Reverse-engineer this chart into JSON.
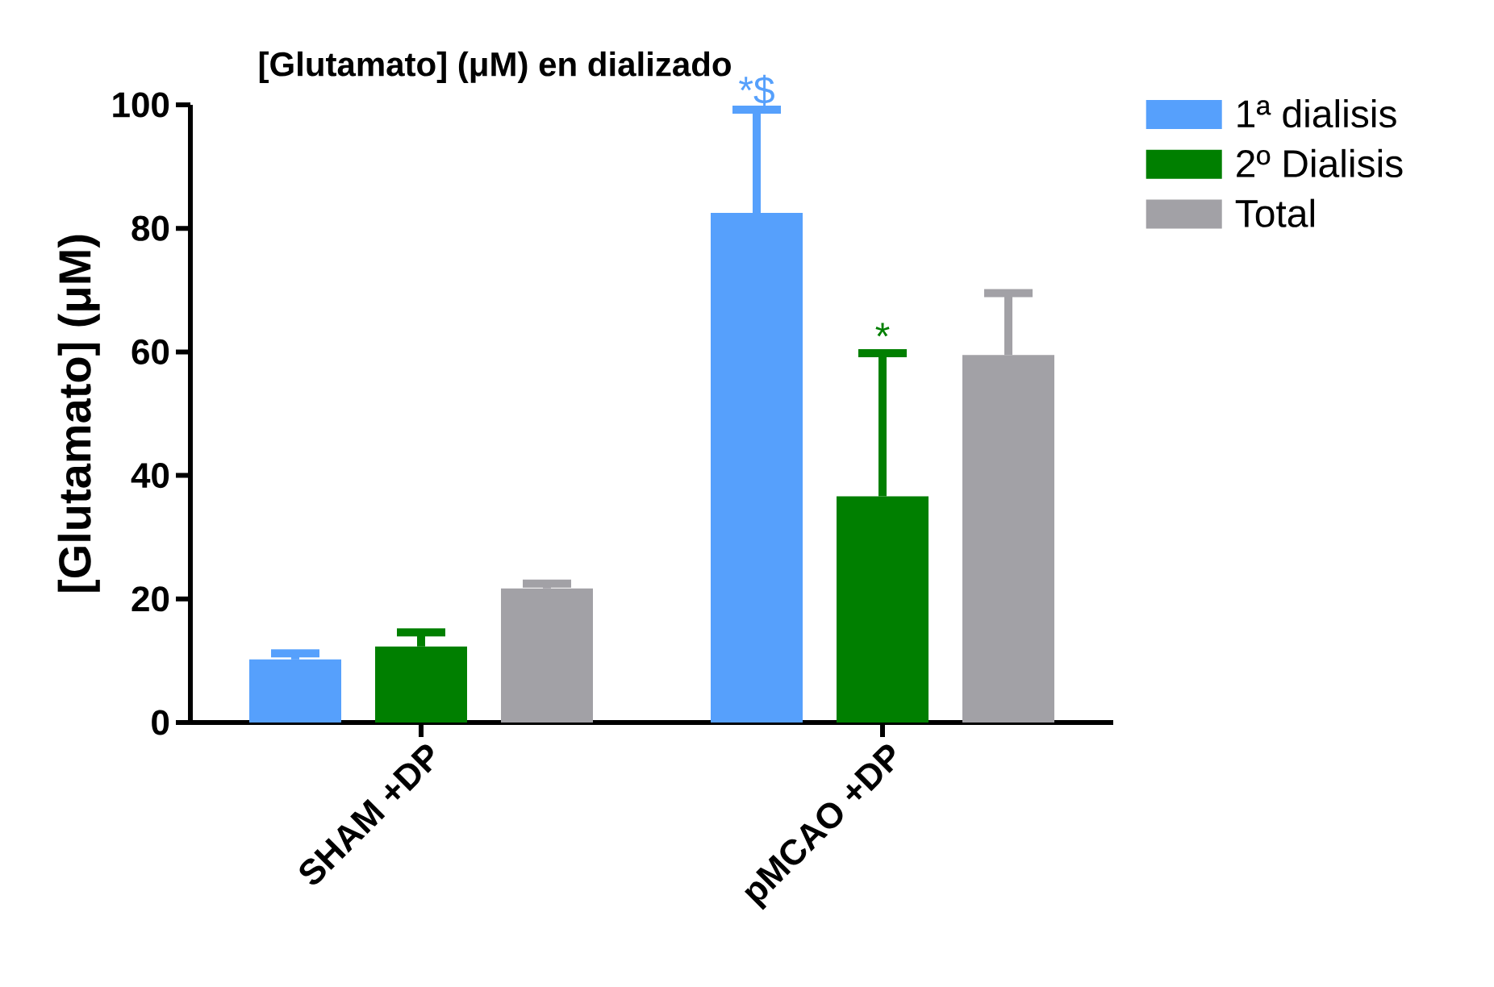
{
  "chart_data": {
    "type": "bar",
    "title": "[Glutamato] (μM) en dializado",
    "ylabel": "[Glutamato] (μM)",
    "categories": [
      "SHAM +DP",
      "pMCAO +DP"
    ],
    "series": [
      {
        "name": "1ª dialisis",
        "color": "#56a0fc",
        "values": [
          10.2,
          82.5
        ],
        "errors": [
          1.0,
          16.7
        ]
      },
      {
        "name": "2º Dialisis",
        "color": "#007f00",
        "values": [
          12.3,
          36.6
        ],
        "errors": [
          2.3,
          23.2
        ]
      },
      {
        "name": "Total",
        "color": "#a2a1a6",
        "values": [
          21.7,
          59.5
        ],
        "errors": [
          0.8,
          10.0
        ]
      }
    ],
    "ylim": [
      0,
      100
    ],
    "yticks": [
      0,
      20,
      40,
      60,
      80,
      100
    ],
    "grid": false,
    "legend": "top right",
    "annotations": [
      "*$",
      "*"
    ]
  }
}
